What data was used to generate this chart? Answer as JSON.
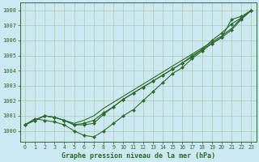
{
  "background_color": "#cce8f0",
  "grid_color": "#b0c8b0",
  "line_color": "#2d6a2d",
  "marker_color": "#2d6a2d",
  "title": "Graphe pression niveau de la mer (hPa)",
  "xlim": [
    -0.5,
    23.5
  ],
  "ylim": [
    999.3,
    1008.5
  ],
  "yticks": [
    1000,
    1001,
    1002,
    1003,
    1004,
    1005,
    1006,
    1007,
    1008
  ],
  "xticks": [
    0,
    1,
    2,
    3,
    4,
    5,
    6,
    7,
    8,
    9,
    10,
    11,
    12,
    13,
    14,
    15,
    16,
    17,
    18,
    19,
    20,
    21,
    22,
    23
  ],
  "series": [
    {
      "y": [
        1000.4,
        1000.7,
        1001.0,
        1000.9,
        1000.7,
        1000.4,
        1000.4,
        1000.5,
        1001.1,
        1001.6,
        1002.1,
        1002.5,
        1002.9,
        1003.3,
        1003.7,
        1004.1,
        1004.5,
        1004.9,
        1005.4,
        1006.0,
        1006.5,
        1007.1,
        1007.5,
        1008.0
      ],
      "marker": true,
      "linewidth": 0.8
    },
    {
      "y": [
        1000.4,
        1000.7,
        1001.0,
        1000.9,
        1000.7,
        1000.4,
        1000.5,
        1000.7,
        1001.2,
        1001.6,
        1002.1,
        1002.5,
        1002.9,
        1003.3,
        1003.7,
        1004.1,
        1004.5,
        1005.0,
        1005.4,
        1005.8,
        1006.2,
        1006.7,
        1007.4,
        1008.0
      ],
      "marker": true,
      "linewidth": 0.8
    },
    {
      "y": [
        1000.4,
        1000.7,
        1001.0,
        1000.9,
        1000.7,
        1000.5,
        1000.7,
        1001.0,
        1001.5,
        1001.9,
        1002.3,
        1002.7,
        1003.1,
        1003.5,
        1003.9,
        1004.3,
        1004.7,
        1005.1,
        1005.5,
        1005.9,
        1006.3,
        1006.8,
        1007.5,
        1008.0
      ],
      "marker": false,
      "linewidth": 0.8
    },
    {
      "y": [
        1000.4,
        1000.8,
        1000.7,
        1000.6,
        1000.4,
        1000.0,
        999.7,
        999.6,
        1000.0,
        1000.5,
        1001.0,
        1001.4,
        1002.0,
        1002.6,
        1003.2,
        1003.8,
        1004.2,
        1004.8,
        1005.3,
        1005.8,
        1006.2,
        1007.4,
        1007.6,
        1008.0
      ],
      "marker": true,
      "linewidth": 0.8
    }
  ]
}
